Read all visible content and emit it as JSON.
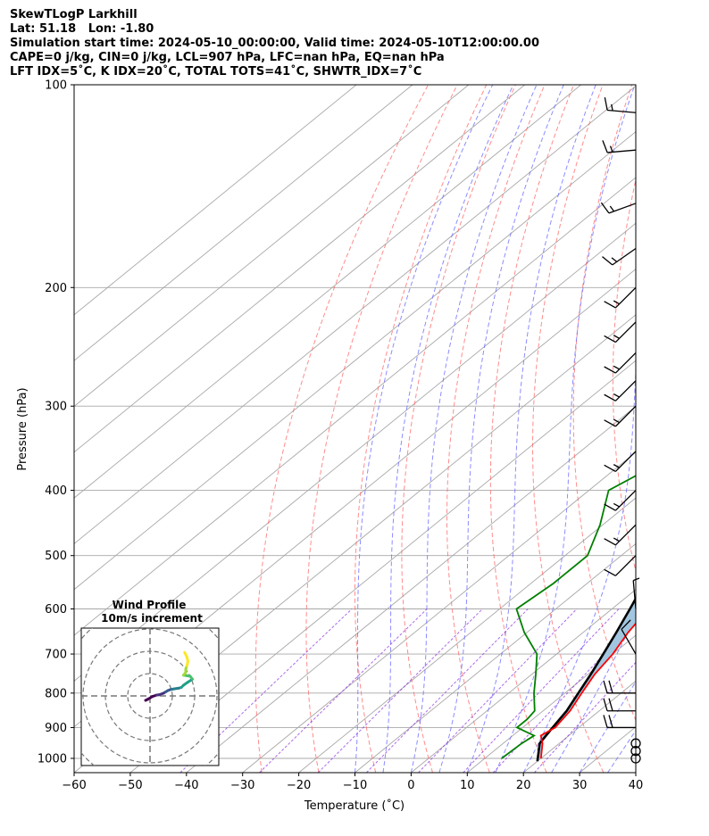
{
  "header": {
    "line1": "SkewTLogP Larkhill",
    "line2": "Lat: 51.18   Lon: -1.80",
    "line3": "Simulation start time: 2024-05-10_00:00:00, Valid time: 2024-05-10T12:00:00.00",
    "line4": "CAPE=0 j/kg, CIN=0 j/kg, LCL=907 hPa, LFC=nan hPa, EQ=nan hPa",
    "line5": "LFT IDX=5˚C, K IDX=20˚C, TOTAL TOTS=41˚C, SHWTR_IDX=7˚C"
  },
  "chart_data": [
    {
      "type": "line",
      "title": "",
      "xlabel": "Temperature (˚C)",
      "ylabel": "Pressure (hPa)",
      "xlim": [
        -60,
        40
      ],
      "ylim": [
        1050,
        100
      ],
      "y_scale": "log",
      "skewed": true,
      "grid": true,
      "x_ticks": [
        -60,
        -50,
        -40,
        -30,
        -20,
        -10,
        0,
        10,
        20,
        30,
        40
      ],
      "y_ticks": [
        1000,
        900,
        800,
        700,
        600,
        500,
        400,
        300,
        200,
        100
      ],
      "colors": {
        "temperature": "#ff0000",
        "dewpoint": "#008000",
        "parcel": "#000000",
        "shade": "#a2c6e0",
        "dry_adiabats": "#ff6666",
        "moist_adiabats": "#6666ff",
        "mixing_ratio": "#8a2be2",
        "isotherms": "#a8a8a8"
      },
      "series": [
        {
          "key": "temperature",
          "points": [
            [
              1000,
              20
            ],
            [
              950,
              17
            ],
            [
              925,
              15
            ],
            [
              900,
              15.8
            ],
            [
              850,
              14.8
            ],
            [
              800,
              13
            ],
            [
              750,
              11.2
            ],
            [
              700,
              10
            ],
            [
              650,
              8
            ],
            [
              600,
              6.5
            ],
            [
              550,
              4
            ],
            [
              500,
              0
            ],
            [
              450,
              -4.5
            ],
            [
              400,
              -8.5
            ],
            [
              360,
              -12.5
            ],
            [
              340,
              -15
            ],
            [
              300,
              -20.5
            ],
            [
              250,
              -28.5
            ],
            [
              220,
              -34.5
            ],
            [
              200,
              -39.5
            ],
            [
              185,
              -44
            ],
            [
              170,
              -47
            ],
            [
              160,
              -48.5
            ],
            [
              150,
              -49
            ],
            [
              130,
              -51
            ],
            [
              115,
              -51.5
            ],
            [
              100,
              -52.5
            ]
          ]
        },
        {
          "key": "dewpoint",
          "points": [
            [
              1000,
              13
            ],
            [
              950,
              13.3
            ],
            [
              925,
              13.8
            ],
            [
              900,
              9
            ],
            [
              875,
              9
            ],
            [
              850,
              8.5
            ],
            [
              800,
              4.5
            ],
            [
              750,
              0.7
            ],
            [
              700,
              -3.5
            ],
            [
              650,
              -10.5
            ],
            [
              600,
              -17
            ],
            [
              550,
              -16
            ],
            [
              500,
              -16
            ],
            [
              450,
              -20.5
            ],
            [
              400,
              -26.5
            ],
            [
              360,
              -23
            ],
            [
              340,
              -25
            ],
            [
              300,
              -34
            ],
            [
              270,
              -38.5
            ],
            [
              250,
              -40
            ],
            [
              220,
              -44.5
            ],
            [
              200,
              -50
            ],
            [
              185,
              -51
            ],
            [
              170,
              -51.5
            ],
            [
              160,
              -53
            ],
            [
              150,
              -56
            ],
            [
              130,
              -62
            ],
            [
              115,
              -64
            ],
            [
              100,
              -68
            ]
          ]
        },
        {
          "key": "parcel",
          "points": [
            [
              1010,
              20
            ],
            [
              950,
              16.5
            ],
            [
              907,
              15.5
            ],
            [
              850,
              14.2
            ],
            [
              800,
              12.4
            ],
            [
              750,
              10.5
            ],
            [
              700,
              8.3
            ],
            [
              650,
              5.9
            ],
            [
              600,
              3.2
            ],
            [
              550,
              0.2
            ],
            [
              500,
              -3.2
            ],
            [
              450,
              -7.3
            ],
            [
              400,
              -12.2
            ],
            [
              350,
              -18.3
            ],
            [
              300,
              -25.9
            ],
            [
              250,
              -35.4
            ],
            [
              200,
              -47.5
            ],
            [
              150,
              -63.2
            ],
            [
              100,
              -85.5
            ]
          ]
        }
      ],
      "wind_barbs": [
        {
          "p": 1000,
          "symbol": "calm"
        },
        {
          "p": 975,
          "symbol": "calm"
        },
        {
          "p": 950,
          "symbol": "calm"
        },
        {
          "p": 900,
          "speed_kt": 20,
          "dir_deg": 270
        },
        {
          "p": 850,
          "speed_kt": 20,
          "dir_deg": 270
        },
        {
          "p": 800,
          "speed_kt": 20,
          "dir_deg": 270
        },
        {
          "p": 700,
          "speed_kt": 10,
          "dir_deg": 330
        },
        {
          "p": 600,
          "speed_kt": 5,
          "dir_deg": 355
        },
        {
          "p": 500,
          "speed_kt": 10,
          "dir_deg": 225
        },
        {
          "p": 450,
          "speed_kt": 15,
          "dir_deg": 225
        },
        {
          "p": 400,
          "speed_kt": 15,
          "dir_deg": 225
        },
        {
          "p": 350,
          "speed_kt": 15,
          "dir_deg": 225
        },
        {
          "p": 300,
          "speed_kt": 15,
          "dir_deg": 225
        },
        {
          "p": 275,
          "speed_kt": 15,
          "dir_deg": 225
        },
        {
          "p": 250,
          "speed_kt": 15,
          "dir_deg": 225
        },
        {
          "p": 225,
          "speed_kt": 15,
          "dir_deg": 225
        },
        {
          "p": 200,
          "speed_kt": 15,
          "dir_deg": 225
        },
        {
          "p": 175,
          "speed_kt": 15,
          "dir_deg": 235
        },
        {
          "p": 150,
          "speed_kt": 15,
          "dir_deg": 250
        },
        {
          "p": 125,
          "speed_kt": 15,
          "dir_deg": 265
        },
        {
          "p": 110,
          "speed_kt": 15,
          "dir_deg": 275
        }
      ]
    },
    {
      "type": "scatter",
      "title": "Wind Profile",
      "subtitle": "10m/s increment",
      "units": "m/s",
      "rings_ms": [
        10,
        20,
        30,
        40
      ],
      "hodograph": [
        [
          -2,
          -2
        ],
        [
          -1,
          -1.5
        ],
        [
          1,
          -0.3
        ],
        [
          3,
          0.4
        ],
        [
          4,
          0.5
        ],
        [
          6,
          1.2
        ],
        [
          7,
          1.8
        ],
        [
          8,
          2.4
        ],
        [
          9,
          2.8
        ],
        [
          10,
          3.0
        ],
        [
          11,
          3.2
        ],
        [
          13,
          3.5
        ],
        [
          14,
          3.8
        ],
        [
          15,
          4.8
        ],
        [
          17,
          6.2
        ],
        [
          19,
          7.5
        ],
        [
          18,
          8.8
        ],
        [
          17,
          9.0
        ],
        [
          15,
          9.3
        ],
        [
          16,
          10.5
        ],
        [
          16,
          12.0
        ],
        [
          16.5,
          13.5
        ],
        [
          17,
          15.5
        ],
        [
          16.5,
          17.5
        ],
        [
          15.5,
          19.5
        ]
      ]
    }
  ]
}
